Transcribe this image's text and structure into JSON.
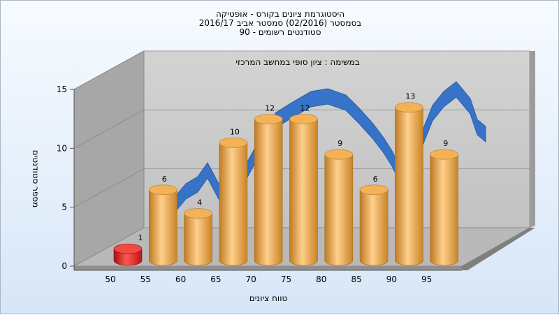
{
  "titles": {
    "line1": "היסטוגרמת ציונים בקורס - אופטיקה",
    "line2": "בסמסטר  (02/2016)  סמסטר אביב 2016/17",
    "line3": "סטודנטים רשומים - 90"
  },
  "chart_data": {
    "type": "bar",
    "inner_label": "במשימה : ציון סופי במחשב המרכזי",
    "xlabel": "טווח ציונים",
    "ylabel": "מספר סטודנטים",
    "ylim": [
      0,
      15
    ],
    "yticks": [
      0,
      5,
      10,
      15
    ],
    "xticks": [
      "50",
      "55",
      "60",
      "65",
      "70",
      "75",
      "80",
      "85",
      "90",
      "95"
    ],
    "categories": [
      "50",
      "55",
      "60",
      "65",
      "70",
      "75",
      "80",
      "85",
      "90",
      "95"
    ],
    "values": [
      1,
      6,
      4,
      10,
      12,
      12,
      9,
      6,
      13,
      9
    ],
    "bar_color": "#e8a64a",
    "highlight_color": "#d8171c",
    "curve_color": "#2f6fc8",
    "grid": true
  }
}
